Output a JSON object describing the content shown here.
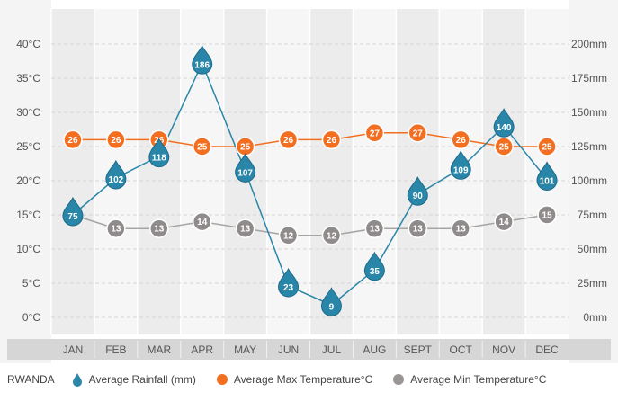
{
  "legend": {
    "country": "RWANDA",
    "rainfall_label": "Average Rainfall (mm)",
    "max_label": "Average Max Temperature°C",
    "min_label": "Average Min Temperature°C"
  },
  "colors": {
    "rain": "#2a86a8",
    "rain_dark": "#1d6a89",
    "max": "#f26f21",
    "min": "#9a9696",
    "band_dark": "#ececec",
    "band_light": "#f6f6f6",
    "axis_bar": "#d6d6d6"
  },
  "chart_data": {
    "type": "line",
    "categories": [
      "JAN",
      "FEB",
      "MAR",
      "APR",
      "MAY",
      "JUN",
      "JUL",
      "AUG",
      "SEPT",
      "OCT",
      "NOV",
      "DEC"
    ],
    "left_axis": {
      "ticks": [
        0,
        5,
        10,
        15,
        20,
        25,
        30,
        35,
        40
      ],
      "tick_labels": [
        "0°C",
        "5°C",
        "10°C",
        "15°C",
        "20°C",
        "25°C",
        "30°C",
        "35°C",
        "40°C"
      ],
      "range": [
        0,
        40
      ]
    },
    "right_axis": {
      "ticks": [
        0,
        25,
        50,
        75,
        100,
        125,
        150,
        175,
        200
      ],
      "tick_labels": [
        "0mm",
        "25mm",
        "50mm",
        "75mm",
        "100mm",
        "125mm",
        "150mm",
        "175mm",
        "200mm"
      ],
      "range": [
        0,
        200
      ]
    },
    "series": [
      {
        "name": "Average Rainfall (mm)",
        "axis": "right",
        "values": [
          75,
          102,
          118,
          186,
          107,
          23,
          9,
          35,
          90,
          109,
          140,
          101
        ]
      },
      {
        "name": "Average Max Temperature°C",
        "axis": "left",
        "values": [
          26,
          26,
          26,
          25,
          25,
          26,
          26,
          27,
          27,
          26,
          25,
          25
        ]
      },
      {
        "name": "Average Min Temperature°C",
        "axis": "left",
        "values": [
          15,
          13,
          13,
          14,
          13,
          12,
          12,
          13,
          13,
          13,
          14,
          15
        ]
      }
    ],
    "grid": true,
    "legend_position": "bottom"
  }
}
